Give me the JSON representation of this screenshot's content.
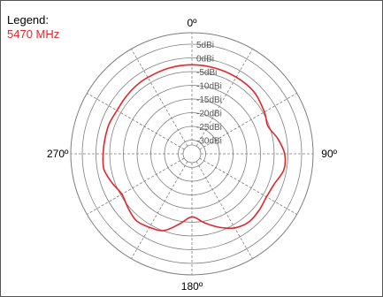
{
  "legend": {
    "title": "Legend:",
    "series_label": "5470 MHz"
  },
  "colors": {
    "trace": "#e3262b",
    "grid": "#7f7f7f",
    "ring_label_bg": "#ffffff"
  },
  "chart_data": {
    "type": "polar-line",
    "angle_labels": [
      {
        "deg": 0,
        "label": "0º"
      },
      {
        "deg": 90,
        "label": "90º"
      },
      {
        "deg": 180,
        "label": "180º"
      },
      {
        "deg": 270,
        "label": "270º"
      }
    ],
    "radial_ticks": [
      {
        "value": 5,
        "label": "5dBi"
      },
      {
        "value": 0,
        "label": "0dBi"
      },
      {
        "value": -5,
        "label": "-5dBi"
      },
      {
        "value": -10,
        "label": "-10dBi"
      },
      {
        "value": -15,
        "label": "-15dBi"
      },
      {
        "value": -20,
        "label": "-20dBi"
      },
      {
        "value": -25,
        "label": "-25dBi"
      },
      {
        "value": -30,
        "label": "-30dBi"
      }
    ],
    "radial_range": [
      -35,
      5
    ],
    "spoke_step_deg": 30,
    "grid": true,
    "legend_position": "top-left",
    "series": [
      {
        "name": "5470 MHz",
        "points": [
          {
            "angle": 0,
            "gain": -2.5
          },
          {
            "angle": 15,
            "gain": -2.6
          },
          {
            "angle": 30,
            "gain": -2.7
          },
          {
            "angle": 45,
            "gain": -3.0
          },
          {
            "angle": 60,
            "gain": -4.5
          },
          {
            "angle": 70,
            "gain": -5.5
          },
          {
            "angle": 80,
            "gain": -3.2
          },
          {
            "angle": 90,
            "gain": -1.2
          },
          {
            "angle": 100,
            "gain": -1.0
          },
          {
            "angle": 110,
            "gain": -3.0
          },
          {
            "angle": 120,
            "gain": -3.6
          },
          {
            "angle": 130,
            "gain": -3.0
          },
          {
            "angle": 140,
            "gain": -2.6
          },
          {
            "angle": 150,
            "gain": -3.8
          },
          {
            "angle": 160,
            "gain": -6.5
          },
          {
            "angle": 170,
            "gain": -9.5
          },
          {
            "angle": 180,
            "gain": -12.0
          },
          {
            "angle": 190,
            "gain": -9.0
          },
          {
            "angle": 200,
            "gain": -5.2
          },
          {
            "angle": 210,
            "gain": -4.0
          },
          {
            "angle": 220,
            "gain": -3.3
          },
          {
            "angle": 230,
            "gain": -4.5
          },
          {
            "angle": 240,
            "gain": -5.5
          },
          {
            "angle": 250,
            "gain": -4.0
          },
          {
            "angle": 260,
            "gain": -2.4
          },
          {
            "angle": 270,
            "gain": -2.6
          },
          {
            "angle": 280,
            "gain": -2.8
          },
          {
            "angle": 290,
            "gain": -2.9
          },
          {
            "angle": 300,
            "gain": -3.4
          },
          {
            "angle": 310,
            "gain": -3.2
          },
          {
            "angle": 320,
            "gain": -2.9
          },
          {
            "angle": 330,
            "gain": -2.8
          },
          {
            "angle": 345,
            "gain": -2.6
          }
        ]
      }
    ]
  }
}
